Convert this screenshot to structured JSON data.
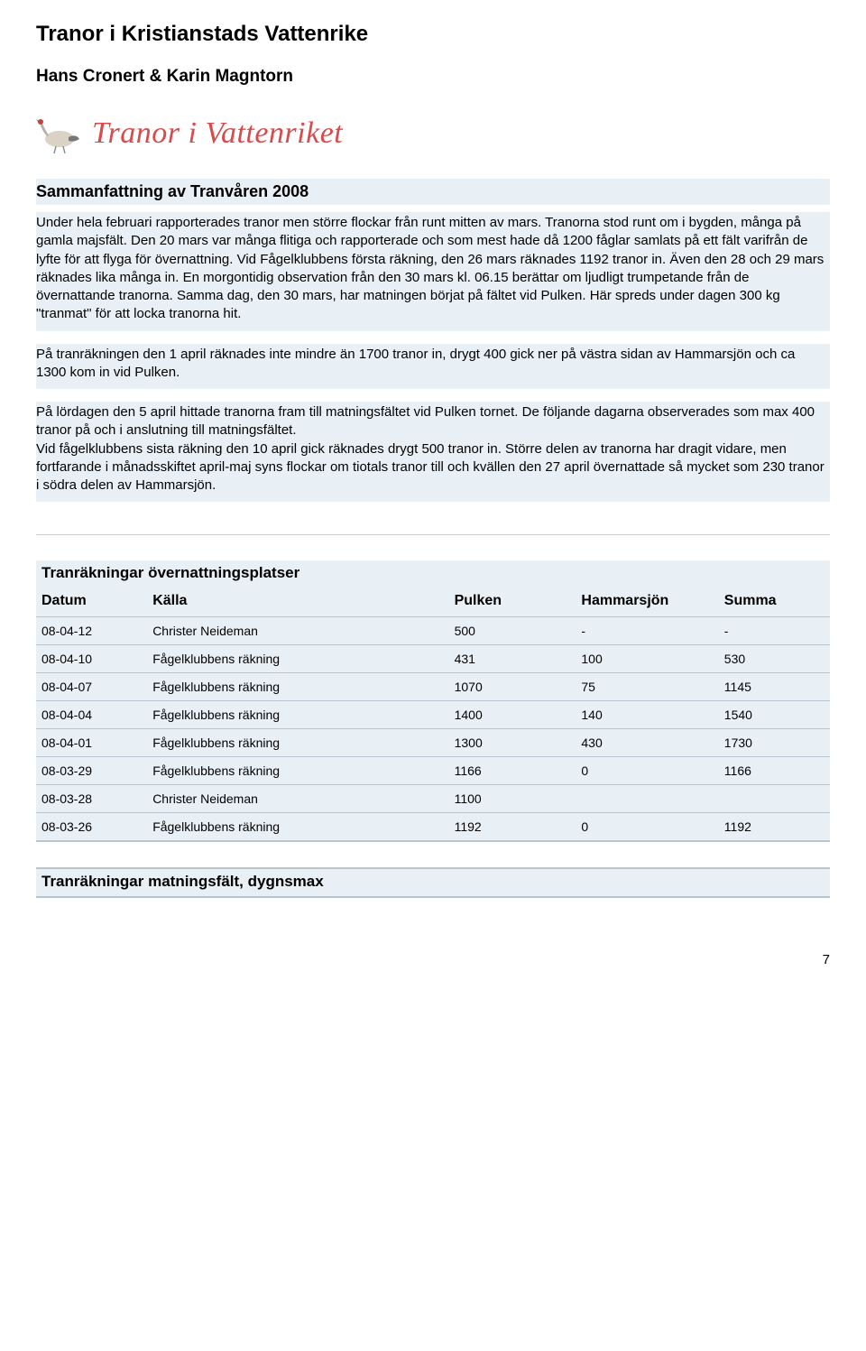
{
  "page": {
    "title": "Tranor i Kristianstads Vattenrike",
    "authors": "Hans Cronert & Karin Magntorn",
    "page_number": "7"
  },
  "logo": {
    "text": "Tranor i Vattenriket",
    "text_color": "#d94a4a"
  },
  "summary": {
    "heading": "Sammanfattning av Tranvåren 2008",
    "paragraphs": [
      "Under hela februari rapporterades tranor men större flockar från runt mitten av mars. Tranorna stod runt om i bygden, många på gamla majsfält. Den 20 mars var många flitiga och rapporterade och som mest hade då 1200 fåglar samlats på ett fält varifrån de lyfte för att flyga för övernattning. Vid Fågelklubbens första räkning, den 26 mars räknades 1192 tranor in. Även den 28 och 29 mars räknades lika många in. En morgontidig observation från den 30 mars kl. 06.15 berättar om ljudligt trumpetande från de övernattande tranorna. Samma dag, den 30 mars, har matningen börjat på fältet vid Pulken. Här spreds under dagen 300 kg \"tranmat\" för att locka tranorna hit.",
      "På tranräkningen den 1 april räknades inte mindre än 1700 tranor in, drygt 400 gick ner på västra sidan av Hammarsjön och ca 1300 kom in vid Pulken.",
      "På lördagen den 5 april hittade tranorna fram till matningsfältet vid Pulken tornet. De följande dagarna observerades som max 400 tranor på och i anslutning till matningsfältet.\nVid fågelklubbens sista räkning den 10 april gick räknades drygt 500 tranor in. Större delen av tranorna har dragit vidare, men fortfarande i månadsskiftet april-maj syns flockar om tiotals tranor till och kvällen den 27 april övernattade så mycket som 230  tranor i södra delen av Hammarsjön."
    ]
  },
  "table1": {
    "title": "Tranräkningar övernattningsplatser",
    "columns": [
      "Datum",
      "Källa",
      "Pulken",
      "Hammarsjön",
      "Summa"
    ],
    "rows": [
      [
        "08-04-12",
        "Christer Neideman",
        "500",
        "-",
        "-"
      ],
      [
        "08-04-10",
        "Fågelklubbens räkning",
        "431",
        "100",
        "530"
      ],
      [
        "08-04-07",
        "Fågelklubbens räkning",
        "1070",
        "75",
        "1145"
      ],
      [
        "08-04-04",
        "Fågelklubbens räkning",
        "1400",
        "140",
        "1540"
      ],
      [
        "08-04-01",
        "Fågelklubbens räkning",
        "1300",
        "430",
        "1730"
      ],
      [
        "08-03-29",
        "Fågelklubbens räkning",
        "1166",
        "0",
        "1166"
      ],
      [
        "08-03-28",
        "Christer Neideman",
        "1100",
        "",
        ""
      ],
      [
        "08-03-26",
        "Fågelklubbens räkning",
        "1192",
        "0",
        "1192"
      ]
    ]
  },
  "table2": {
    "title": "Tranräkningar matningsfält, dygnsmax"
  },
  "styles": {
    "background_block": "#e8f0f6",
    "border_color": "#b8c5d0",
    "body_font_size": 15,
    "heading_font_size": 18,
    "title_font_size": 24
  }
}
